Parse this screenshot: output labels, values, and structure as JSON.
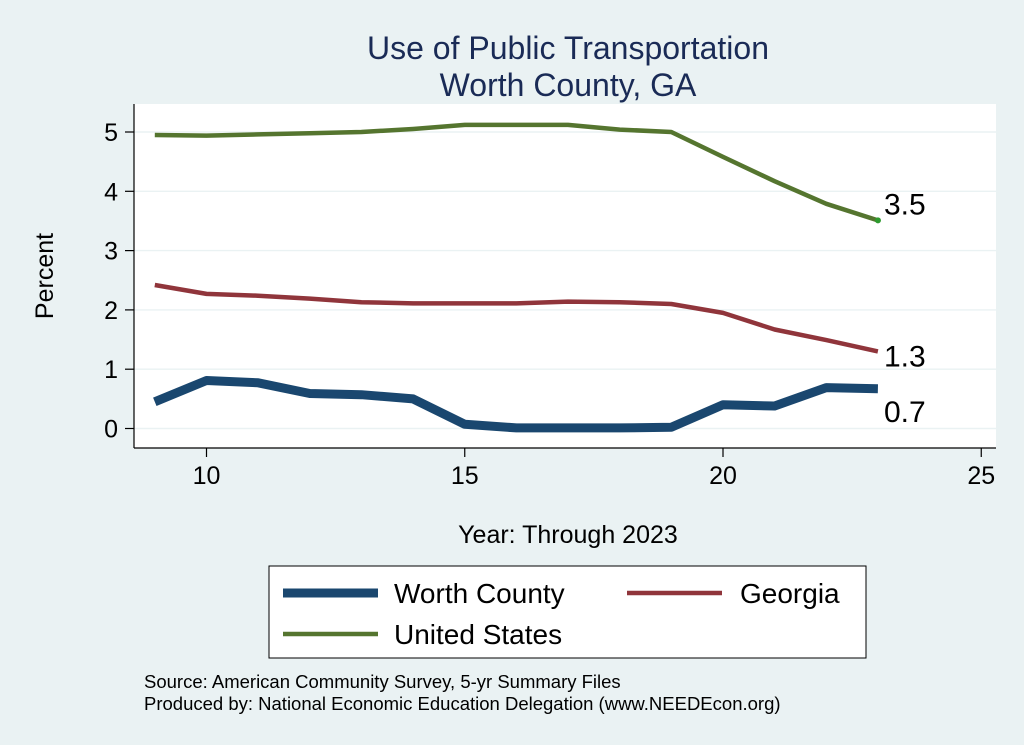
{
  "chart_data": {
    "type": "line",
    "title": [
      "Use of Public Transportation",
      "Worth County, GA"
    ],
    "xlabel": "Year: Through 2023",
    "ylabel": "Percent",
    "xlim": [
      9,
      25
    ],
    "ylim": [
      0,
      5.2
    ],
    "xticks": [
      10,
      15,
      20,
      25
    ],
    "yticks": [
      0,
      1,
      2,
      3,
      4,
      5
    ],
    "grid": true,
    "legend_position": "bottom",
    "x": [
      9,
      10,
      11,
      12,
      13,
      14,
      15,
      16,
      17,
      18,
      19,
      20,
      21,
      22,
      23
    ],
    "series": [
      {
        "name": "Worth County",
        "color": "#1a476f",
        "values": [
          0.45,
          0.81,
          0.77,
          0.59,
          0.57,
          0.5,
          0.07,
          0.01,
          0.01,
          0.01,
          0.02,
          0.4,
          0.38,
          0.69,
          0.67
        ],
        "end_label": "0.7"
      },
      {
        "name": "Georgia",
        "color": "#90353b",
        "values": [
          2.42,
          2.27,
          2.24,
          2.19,
          2.13,
          2.11,
          2.11,
          2.11,
          2.14,
          2.13,
          2.1,
          1.95,
          1.67,
          1.49,
          1.3
        ],
        "end_label": "1.3"
      },
      {
        "name": "United States",
        "color": "#55752f",
        "values": [
          4.95,
          4.94,
          4.96,
          4.98,
          5.0,
          5.05,
          5.12,
          5.12,
          5.12,
          5.04,
          5.0,
          4.58,
          4.17,
          3.79,
          3.51
        ],
        "end_label": "3.5"
      }
    ],
    "notes": [
      "Source: American Community Survey, 5-yr Summary Files",
      "Produced by: National Economic Education Delegation (www.NEEDEcon.org)"
    ]
  }
}
